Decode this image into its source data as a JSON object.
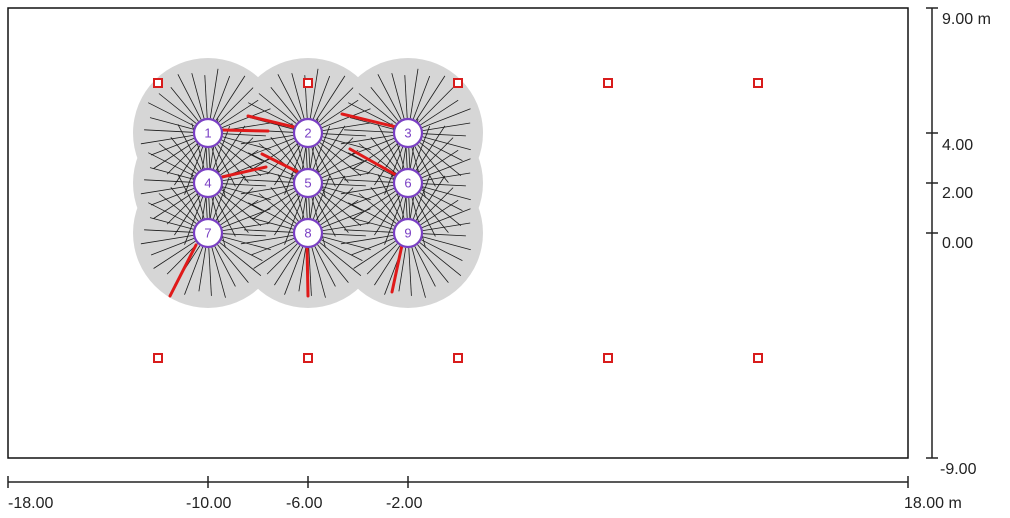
{
  "x_axis": {
    "labels": [
      "-18.00",
      "-10.00",
      "-6.00",
      "-2.00",
      "18.00 m"
    ],
    "ticks": [
      -18,
      -10,
      -6,
      -2,
      18
    ]
  },
  "y_axis": {
    "labels": [
      "9.00 m",
      "4.00",
      "2.00",
      "0.00",
      "-9.00"
    ],
    "ticks": [
      9,
      4,
      2,
      0,
      -9
    ]
  },
  "nodes": [
    {
      "id": "1",
      "x": -10,
      "y": 4
    },
    {
      "id": "2",
      "x": -6,
      "y": 4
    },
    {
      "id": "3",
      "x": -2,
      "y": 4
    },
    {
      "id": "4",
      "x": -10,
      "y": 2
    },
    {
      "id": "5",
      "x": -6,
      "y": 2
    },
    {
      "id": "6",
      "x": -2,
      "y": 2
    },
    {
      "id": "7",
      "x": -10,
      "y": 0
    },
    {
      "id": "8",
      "x": -6,
      "y": 0
    },
    {
      "id": "9",
      "x": -2,
      "y": 0
    }
  ],
  "markers": [
    {
      "x": -12,
      "y": 6
    },
    {
      "x": -6,
      "y": 6
    },
    {
      "x": 0,
      "y": 6
    },
    {
      "x": 6,
      "y": 6
    },
    {
      "x": 12,
      "y": 6
    },
    {
      "x": -12,
      "y": -5
    },
    {
      "x": -6,
      "y": -5
    },
    {
      "x": 0,
      "y": -5
    },
    {
      "x": 6,
      "y": -5
    },
    {
      "x": 12,
      "y": -5
    }
  ],
  "colors": {
    "frame": "#111111",
    "zone": "#d6d6d6",
    "ray": "#1a1a1a",
    "highlight": "#e01a1a",
    "node_stroke": "#7a3fc4",
    "marker": "#d81c1c"
  }
}
